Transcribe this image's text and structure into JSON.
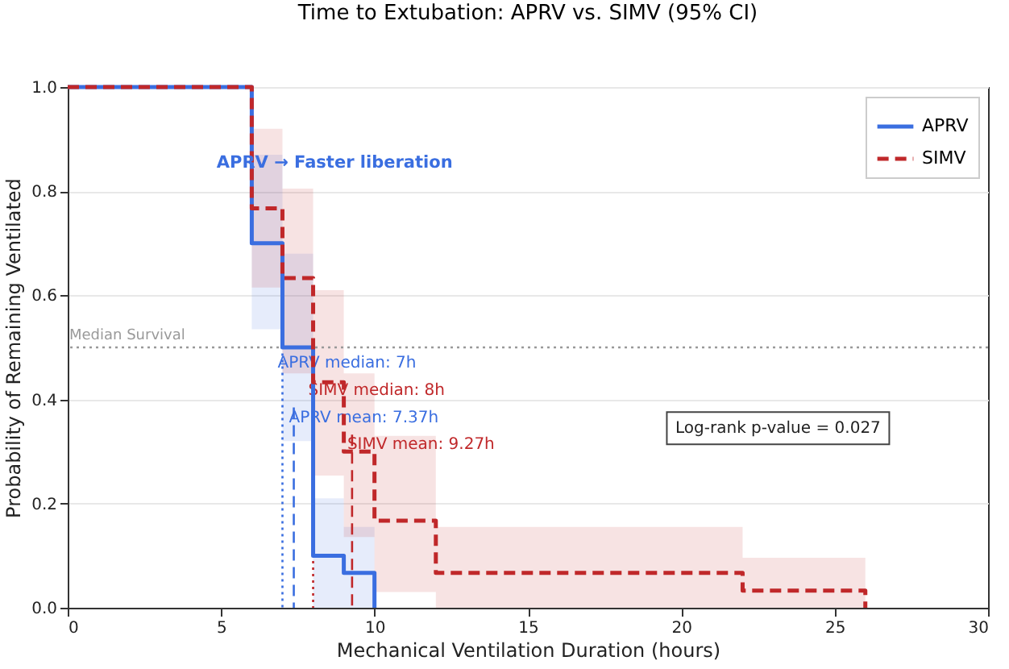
{
  "chart_data": {
    "type": "step",
    "title": "Time to Extubation: APRV vs. SIMV (95% CI)",
    "xlabel": "Mechanical Ventilation Duration (hours)",
    "ylabel": "Probability of Remaining Ventilated",
    "series": [
      {
        "name": "APRV",
        "color": "#3a6ee0",
        "line_style": "solid",
        "x": [
          0,
          6,
          7,
          8,
          9,
          10
        ],
        "values": [
          1.0,
          0.7,
          0.5,
          0.1,
          0.067,
          0
        ],
        "lower": [
          1.0,
          0.535,
          0.32,
          0,
          0,
          0
        ],
        "upper": [
          1.0,
          0.87,
          0.68,
          0.21,
          0.155,
          0
        ]
      },
      {
        "name": "SIMV",
        "color": "#c0282a",
        "line_style": "dashed",
        "x": [
          0,
          6,
          7,
          8,
          9,
          10,
          12,
          22,
          26
        ],
        "values": [
          1.0,
          0.767,
          0.633,
          0.433,
          0.3,
          0.167,
          0.067,
          0.033,
          0
        ],
        "lower": [
          1.0,
          0.615,
          0.45,
          0.254,
          0.136,
          0.03,
          0,
          0,
          0
        ],
        "upper": [
          1.0,
          0.92,
          0.805,
          0.61,
          0.45,
          0.33,
          0.155,
          0.096,
          0
        ]
      }
    ],
    "ref_lines": [
      {
        "axis": "y",
        "value": 0.5,
        "label": "Median Survival",
        "color": "#999999",
        "line_style": "dotted"
      },
      {
        "axis": "x",
        "value": 7,
        "label": "APRV median: 7h",
        "color": "#3a6ee0",
        "line_style": "dotted"
      },
      {
        "axis": "x",
        "value": 8,
        "label": "SIMV median: 8h",
        "color": "#c0282a",
        "line_style": "dotted"
      },
      {
        "axis": "x",
        "value": 7.37,
        "label": "APRV mean: 7.37h",
        "color": "#3a6ee0",
        "line_style": "dashed"
      },
      {
        "axis": "x",
        "value": 9.27,
        "label": "SIMV mean: 9.27h",
        "color": "#c0282a",
        "line_style": "dashed"
      }
    ],
    "annotations": [
      "APRV → Faster liberation",
      "Log-rank p-value = 0.027"
    ],
    "xlim": [
      0,
      30
    ],
    "xticks": [
      0,
      5,
      10,
      15,
      20,
      25,
      30
    ],
    "ylim": [
      0,
      1.0
    ],
    "yticks": [
      {
        "value": 0,
        "label": "0.0"
      },
      0.2,
      0.4,
      0.6,
      0.8,
      {
        "value": 1,
        "label": "1.0"
      }
    ],
    "grid": "y",
    "legend": "top right",
    "marker": "none"
  }
}
